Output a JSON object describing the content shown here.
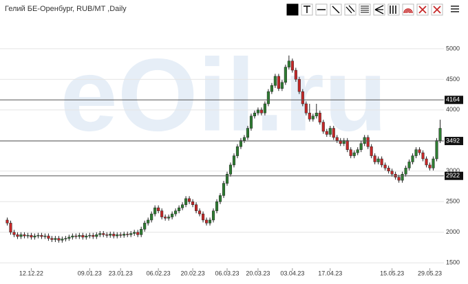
{
  "chart_data": {
    "type": "candlestick",
    "title": "Гелий БЕ-Оренбург, RUB/MT ,Daily",
    "watermark": "eOil.ru",
    "up_color": "#2e7d32",
    "down_color": "#c62828",
    "ylim": [
      1390,
      5460
    ],
    "yticks": [
      1500,
      2000,
      2500,
      3000,
      3500,
      4000,
      4500,
      5000
    ],
    "grid": true,
    "levels": [
      4164,
      3492,
      2922
    ],
    "categories": [
      null,
      null,
      null,
      null,
      null,
      null,
      null,
      "12.12.22",
      null,
      null,
      null,
      null,
      null,
      null,
      null,
      null,
      null,
      null,
      null,
      null,
      null,
      null,
      null,
      null,
      "09.01.23",
      null,
      null,
      null,
      null,
      null,
      null,
      null,
      null,
      "23.01.23",
      null,
      null,
      null,
      null,
      null,
      null,
      null,
      null,
      null,
      null,
      "06.02.23",
      null,
      null,
      null,
      null,
      null,
      null,
      null,
      null,
      null,
      "20.02.23",
      null,
      null,
      null,
      null,
      null,
      null,
      null,
      null,
      null,
      "06.03.23",
      null,
      null,
      null,
      null,
      null,
      null,
      null,
      null,
      "20.03.23",
      null,
      null,
      null,
      null,
      null,
      null,
      null,
      null,
      null,
      "03.04.23",
      null,
      null,
      null,
      null,
      null,
      null,
      null,
      null,
      null,
      null,
      "17.04.23",
      null,
      null,
      null,
      null,
      null,
      null,
      null,
      null,
      null,
      null,
      null,
      null,
      null,
      null,
      null,
      null,
      null,
      "15.05.23",
      null,
      null,
      null,
      null,
      null,
      null,
      null,
      null,
      null,
      null,
      "29.05.23",
      null,
      null,
      null
    ],
    "open": [
      2200,
      2150,
      2000,
      1960,
      1930,
      1960,
      1940,
      1950,
      1920,
      1940,
      1950,
      1930,
      1940,
      1900,
      1880,
      1900,
      1870,
      1890,
      1900,
      1920,
      1940,
      1930,
      1950,
      1920,
      1940,
      1950,
      1930,
      1960,
      1980,
      1960,
      1950,
      1970,
      1940,
      1960,
      1950,
      1970,
      1960,
      1980,
      2000,
      1960,
      2050,
      2150,
      2200,
      2300,
      2400,
      2350,
      2250,
      2230,
      2250,
      2300,
      2350,
      2400,
      2450,
      2550,
      2500,
      2450,
      2350,
      2300,
      2200,
      2150,
      2200,
      2350,
      2500,
      2600,
      2800,
      2950,
      3100,
      3250,
      3400,
      3500,
      3550,
      3700,
      3900,
      3950,
      4000,
      3950,
      4100,
      4300,
      4400,
      4550,
      4350,
      4450,
      4700,
      4800,
      4650,
      4500,
      4300,
      4100,
      3950,
      3850,
      3900,
      3950,
      3800,
      3650,
      3600,
      3700,
      3550,
      3500,
      3450,
      3500,
      3350,
      3250,
      3300,
      3350,
      3450,
      3550,
      3400,
      3250,
      3150,
      3200,
      3100,
      3050,
      3000,
      2950,
      2900,
      2850,
      2950,
      3050,
      3150,
      3250,
      3350,
      3300,
      3200,
      3100,
      3050,
      3200,
      3500
    ],
    "high": [
      2240,
      2190,
      2040,
      2000,
      2000,
      2000,
      1990,
      1990,
      1980,
      1990,
      1990,
      1980,
      1980,
      1940,
      1940,
      1940,
      1930,
      1940,
      1960,
      1980,
      1980,
      1990,
      1990,
      1980,
      1990,
      1990,
      2000,
      2020,
      2020,
      2000,
      2010,
      2010,
      2000,
      2000,
      2010,
      2010,
      2020,
      2040,
      2040,
      2090,
      2190,
      2240,
      2340,
      2440,
      2440,
      2390,
      2290,
      2290,
      2340,
      2390,
      2440,
      2490,
      2590,
      2590,
      2540,
      2490,
      2390,
      2340,
      2240,
      2240,
      2390,
      2540,
      2640,
      2840,
      2990,
      3140,
      3290,
      3440,
      3540,
      3590,
      3740,
      3940,
      3990,
      4040,
      4040,
      4140,
      4340,
      4440,
      4590,
      4590,
      4490,
      4740,
      4890,
      4840,
      4690,
      4540,
      4340,
      4140,
      4100,
      3940,
      4100,
      3990,
      3840,
      3690,
      3740,
      3740,
      3590,
      3540,
      3540,
      3540,
      3390,
      3340,
      3390,
      3490,
      3590,
      3590,
      3440,
      3290,
      3240,
      3240,
      3140,
      3090,
      3040,
      2990,
      2940,
      2990,
      3090,
      3190,
      3290,
      3390,
      3390,
      3340,
      3240,
      3140,
      3240,
      3540,
      3840
    ],
    "low": [
      2110,
      1960,
      1920,
      1890,
      1890,
      1900,
      1900,
      1880,
      1880,
      1900,
      1890,
      1890,
      1860,
      1840,
      1840,
      1830,
      1830,
      1850,
      1860,
      1880,
      1890,
      1890,
      1880,
      1880,
      1900,
      1890,
      1890,
      1920,
      1920,
      1910,
      1910,
      1900,
      1900,
      1910,
      1910,
      1920,
      1920,
      1940,
      1920,
      1920,
      2010,
      2110,
      2160,
      2260,
      2310,
      2210,
      2190,
      2190,
      2210,
      2260,
      2310,
      2360,
      2410,
      2460,
      2410,
      2310,
      2260,
      2160,
      2110,
      2110,
      2160,
      2310,
      2460,
      2560,
      2760,
      2910,
      3060,
      3210,
      3360,
      3460,
      3510,
      3660,
      3860,
      3910,
      3910,
      3910,
      4060,
      4260,
      4360,
      4310,
      4310,
      4410,
      4660,
      4610,
      4460,
      4260,
      4060,
      3910,
      3810,
      3810,
      3860,
      3760,
      3610,
      3560,
      3560,
      3510,
      3460,
      3410,
      3410,
      3310,
      3210,
      3210,
      3260,
      3310,
      3410,
      3360,
      3210,
      3110,
      3110,
      3060,
      3010,
      2960,
      2910,
      2860,
      2810,
      2810,
      2910,
      3010,
      3110,
      3210,
      3260,
      3160,
      3060,
      3010,
      3010,
      3160,
      3460
    ],
    "close": [
      2150,
      2000,
      1960,
      1930,
      1960,
      1940,
      1950,
      1920,
      1940,
      1950,
      1930,
      1940,
      1900,
      1880,
      1900,
      1870,
      1890,
      1900,
      1920,
      1940,
      1930,
      1950,
      1920,
      1940,
      1950,
      1930,
      1960,
      1980,
      1960,
      1950,
      1970,
      1940,
      1960,
      1950,
      1970,
      1960,
      1980,
      2000,
      1960,
      2050,
      2150,
      2200,
      2300,
      2400,
      2350,
      2250,
      2230,
      2250,
      2300,
      2350,
      2400,
      2450,
      2550,
      2500,
      2450,
      2350,
      2300,
      2200,
      2150,
      2200,
      2350,
      2500,
      2600,
      2800,
      2950,
      3100,
      3250,
      3400,
      3500,
      3550,
      3700,
      3900,
      3950,
      4000,
      3950,
      4100,
      4300,
      4400,
      4550,
      4350,
      4450,
      4700,
      4800,
      4650,
      4500,
      4300,
      4100,
      3950,
      3850,
      3900,
      3950,
      3800,
      3650,
      3600,
      3700,
      3550,
      3500,
      3450,
      3500,
      3350,
      3250,
      3300,
      3350,
      3450,
      3550,
      3400,
      3250,
      3150,
      3200,
      3100,
      3050,
      3000,
      2950,
      2900,
      2850,
      2950,
      3050,
      3150,
      3250,
      3350,
      3300,
      3200,
      3100,
      3050,
      3200,
      3500,
      3700
    ]
  }
}
